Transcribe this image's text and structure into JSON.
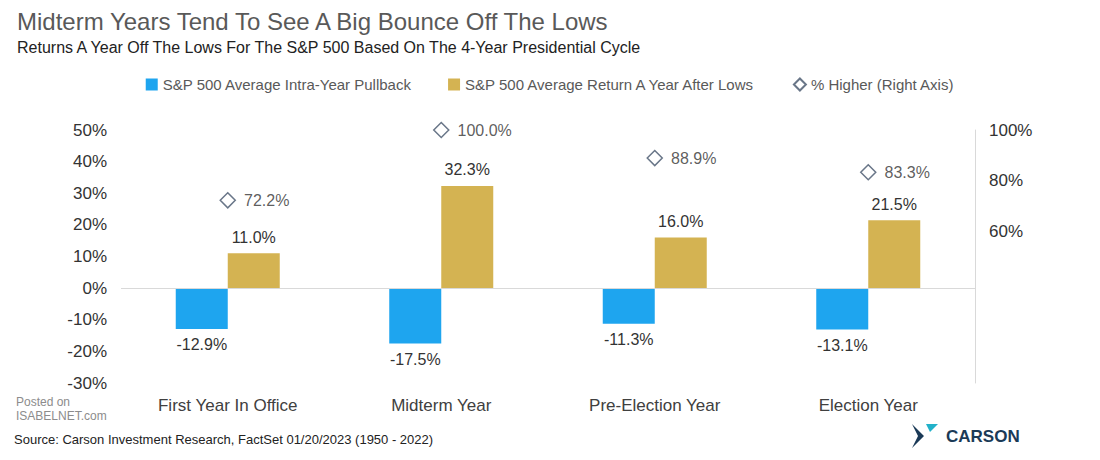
{
  "chart_data": {
    "type": "bar",
    "title": "Midterm Years Tend To See A Big Bounce Off The Lows",
    "subtitle": "Returns A Year Off The Lows For The S&P 500 Based On The 4-Year Presidential Cycle",
    "categories": [
      "First Year In Office",
      "Midterm Year",
      "Pre-Election Year",
      "Election Year"
    ],
    "series": [
      {
        "name": "S&P 500 Average Intra-Year Pullback",
        "type": "bar",
        "color": "#1ea5ef",
        "values": [
          -12.9,
          -17.5,
          -11.3,
          -13.1
        ],
        "value_labels": [
          "-12.9%",
          "-17.5%",
          "-11.3%",
          "-13.1%"
        ]
      },
      {
        "name": "S&P 500 Average Return A Year After Lows",
        "type": "bar",
        "color": "#d4b352",
        "values": [
          11.0,
          32.3,
          16.0,
          21.5
        ],
        "value_labels": [
          "11.0%",
          "32.3%",
          "16.0%",
          "21.5%"
        ]
      },
      {
        "name": "% Higher (Right Axis)",
        "type": "scatter",
        "marker": "diamond",
        "color": "#44546a",
        "axis": "y2",
        "values": [
          72.2,
          100.0,
          88.9,
          83.3
        ],
        "value_labels": [
          "72.2%",
          "100.0%",
          "88.9%",
          "83.3%"
        ]
      }
    ],
    "ylim": [
      -30,
      50
    ],
    "yticks": [
      {
        "value": -30,
        "label": "-30%"
      },
      {
        "value": -20,
        "label": "-20%"
      },
      {
        "value": -10,
        "label": "-10%"
      },
      {
        "value": 0,
        "label": "0%"
      },
      {
        "value": 10,
        "label": "10%"
      },
      {
        "value": 20,
        "label": "20%"
      },
      {
        "value": 30,
        "label": "30%"
      },
      {
        "value": 40,
        "label": "40%"
      },
      {
        "value": 50,
        "label": "50%"
      }
    ],
    "y2lim": [
      0,
      100
    ],
    "y2ticks": [
      {
        "value": 60,
        "label": "60%"
      },
      {
        "value": 80,
        "label": "80%"
      },
      {
        "value": 100,
        "label": "100%"
      }
    ],
    "grid": false,
    "legend": "top",
    "data_labels": true,
    "source": "Source: Carson Investment Research, FactSet 01/20/2023 (1950 - 2022)",
    "watermark": [
      "Posted on",
      "ISABELNET.com"
    ],
    "logo": "CARSON"
  }
}
